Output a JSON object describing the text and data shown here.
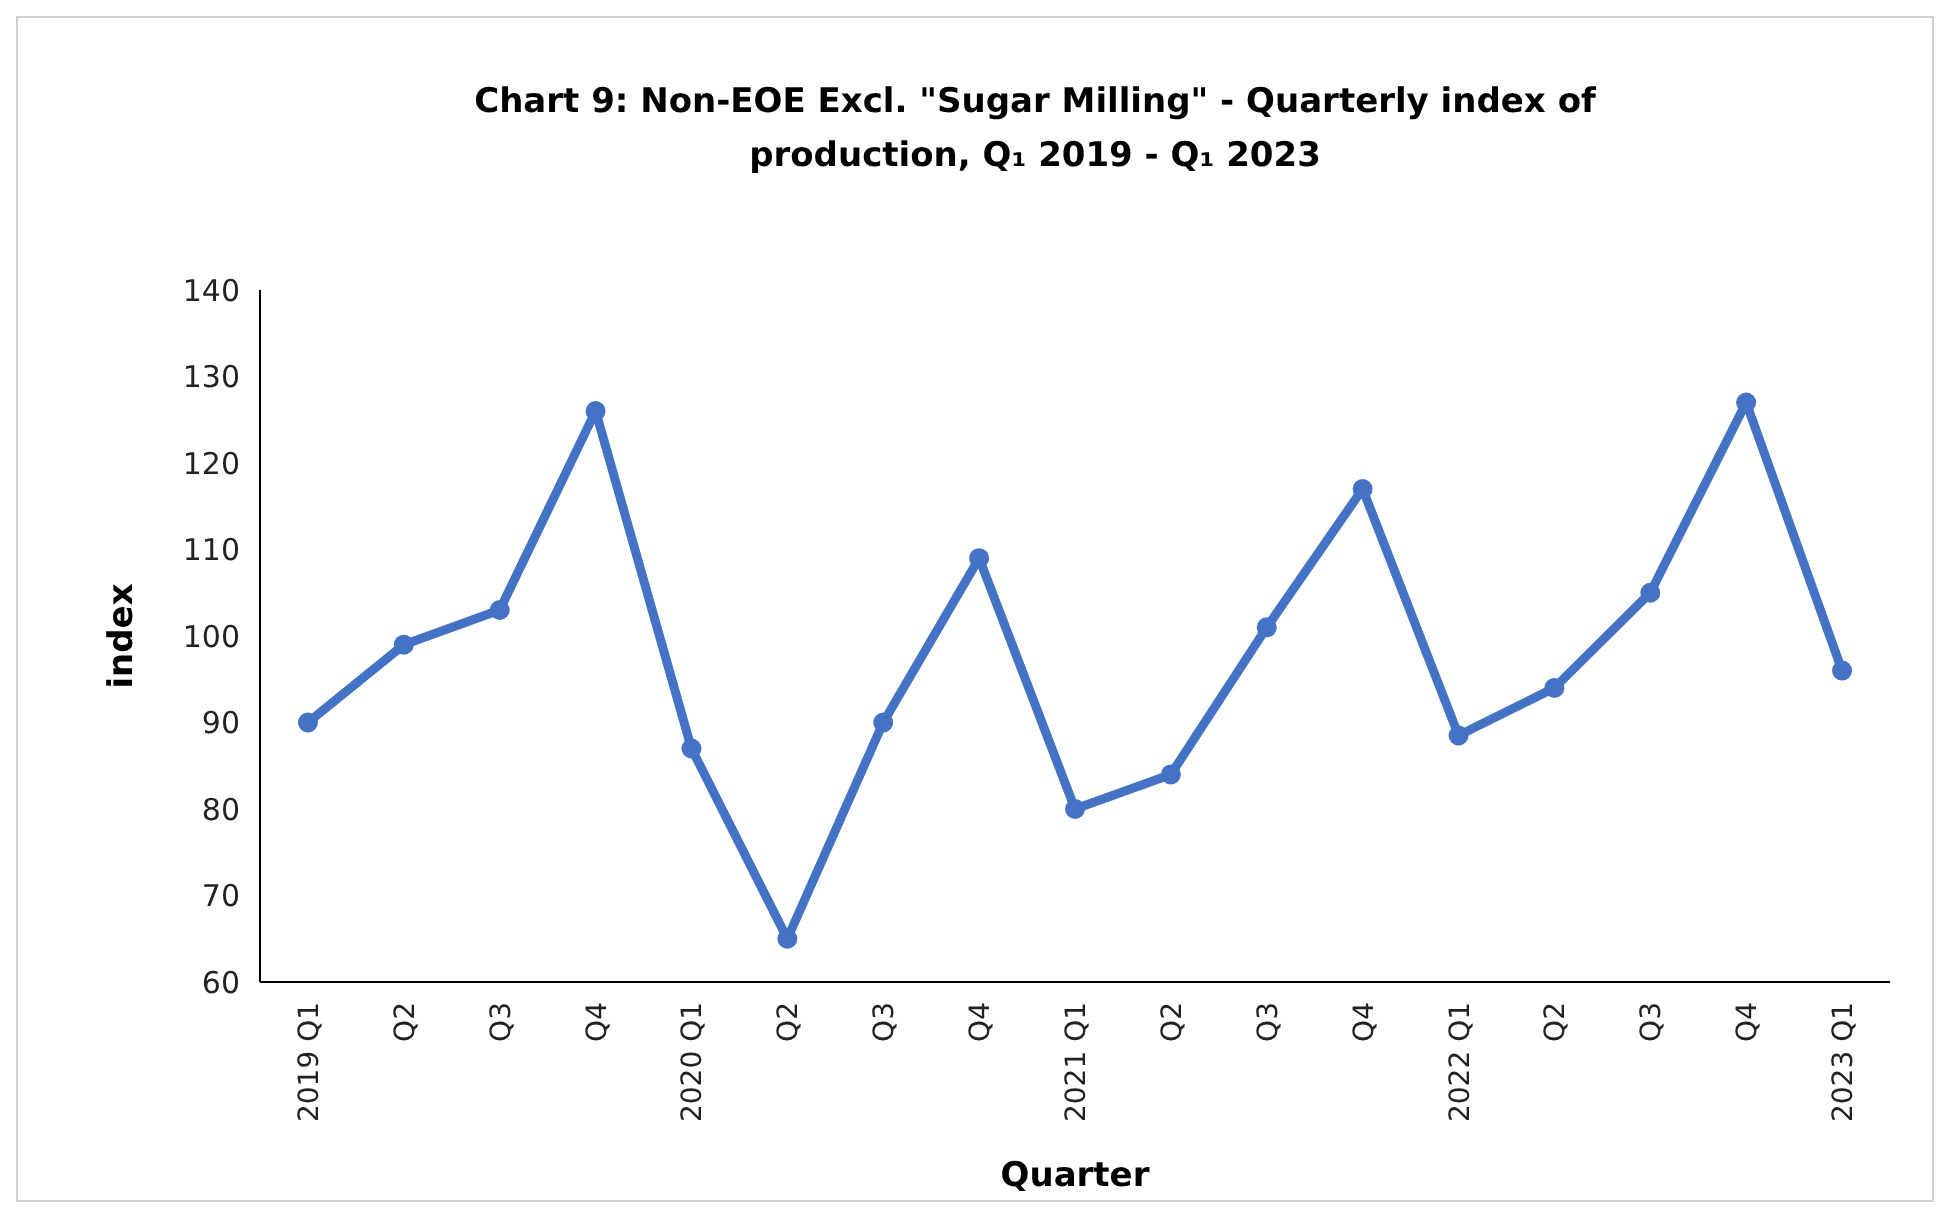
{
  "chart_data": {
    "type": "line",
    "title": "Chart 9: Non-EOE Excl. \"Sugar Milling\" - Quarterly index of production, Q₁ 2019 - Q₁ 2023",
    "xlabel": "Quarter",
    "ylabel": "index",
    "categories": [
      "2019 Q1",
      "Q2",
      "Q3",
      "Q4",
      "2020 Q1",
      "Q2",
      "Q3",
      "Q4",
      "2021 Q1",
      "Q2",
      "Q3",
      "Q4",
      "2022 Q1",
      "Q2",
      "Q3",
      "Q4",
      "2023 Q1"
    ],
    "series": [
      {
        "color": "#4472c4",
        "values": [
          90,
          99,
          103,
          126,
          87,
          65,
          90,
          109,
          80,
          84,
          101,
          117,
          88.5,
          94,
          105,
          127,
          96
        ]
      }
    ],
    "ylim": [
      60,
      140
    ],
    "yticks": [
      60,
      70,
      80,
      90,
      100,
      110,
      120,
      130,
      140
    ],
    "grid": false,
    "marker": "circle",
    "line_style": "solid"
  }
}
